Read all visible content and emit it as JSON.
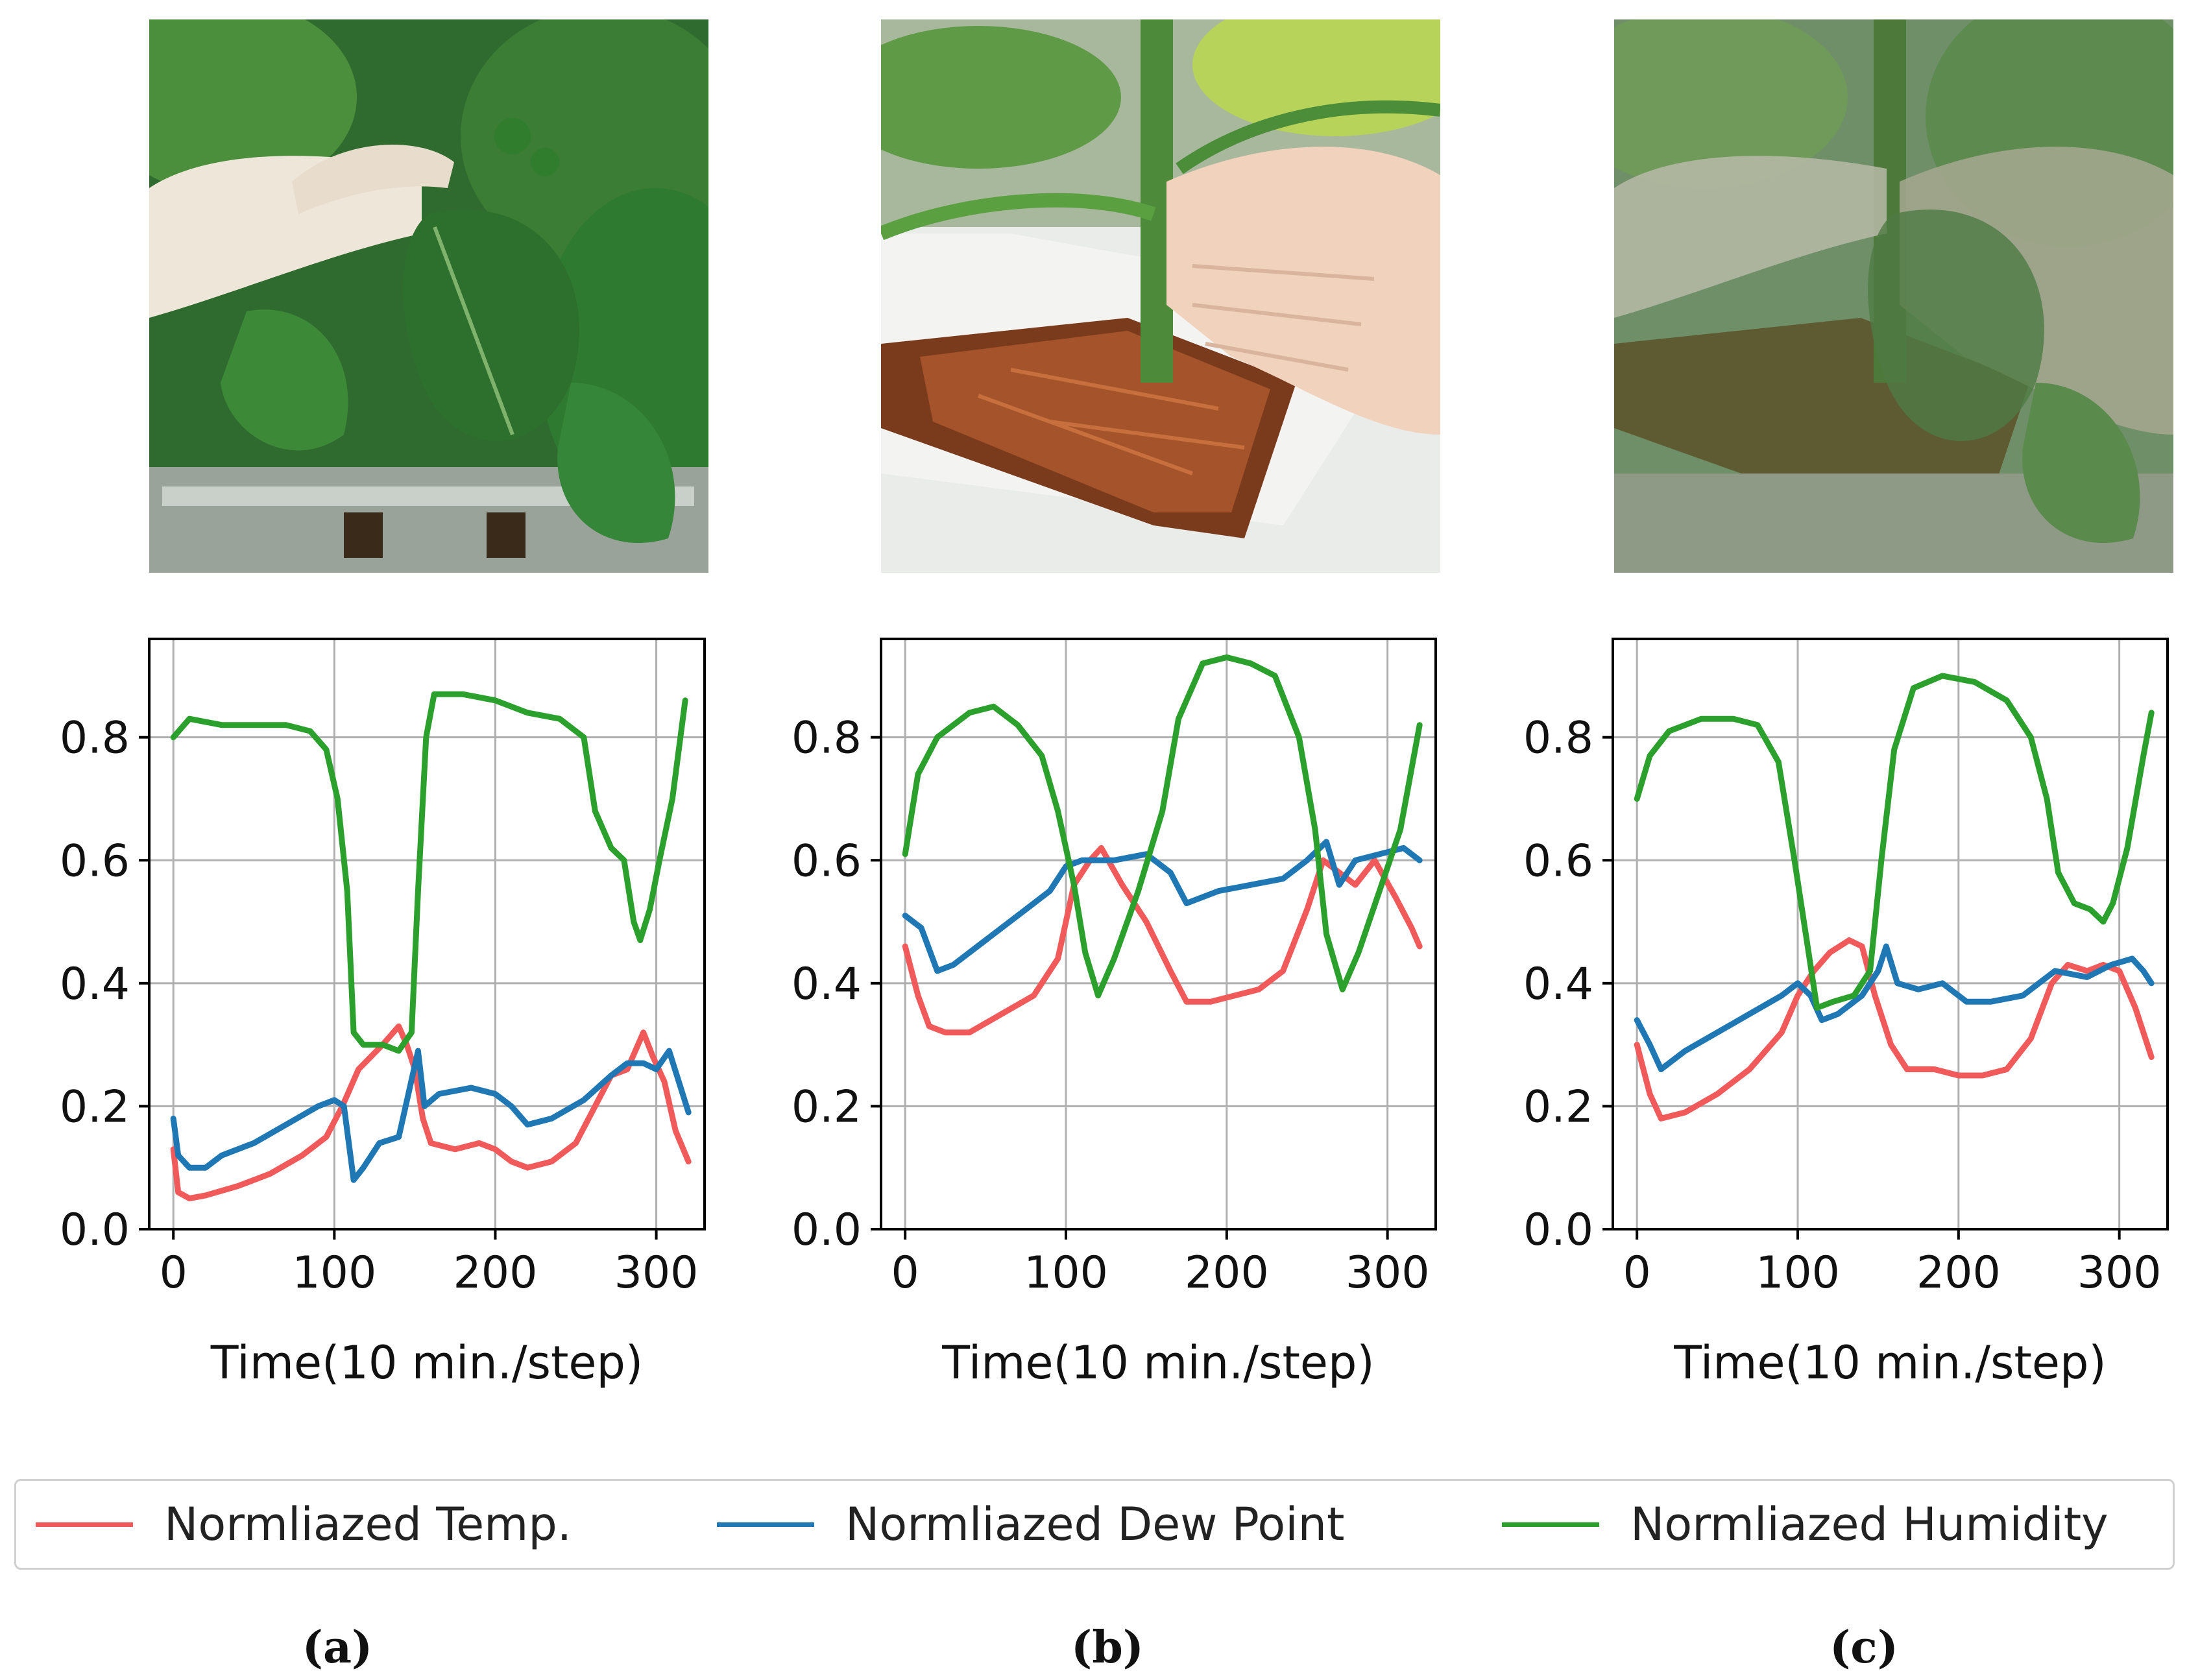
{
  "photos": [
    {
      "label": "leaf-photo"
    },
    {
      "label": "root-photo"
    },
    {
      "label": "overlay-photo"
    }
  ],
  "captions": [
    "(a)",
    "(b)",
    "(c)"
  ],
  "legend": [
    {
      "label": "Normliazed Temp.",
      "color": "#f15a5a"
    },
    {
      "label": "Normliazed Dew Point",
      "color": "#1f77b4"
    },
    {
      "label": "Normliazed Humidity",
      "color": "#2ca02c"
    }
  ],
  "chart_data": [
    {
      "type": "line",
      "panel": "(a)",
      "xlabel": "Time(10 min./step)",
      "ylabel": "",
      "xlim": [
        -15,
        330
      ],
      "ylim": [
        0.0,
        0.96
      ],
      "xticks": [
        0,
        100,
        200,
        300
      ],
      "yticks": [
        0.0,
        0.2,
        0.4,
        0.6,
        0.8
      ],
      "grid": true,
      "series": [
        {
          "name": "Normliazed Temp.",
          "color": "#f15a5a",
          "points": [
            [
              0,
              0.13
            ],
            [
              3,
              0.06
            ],
            [
              10,
              0.05
            ],
            [
              20,
              0.055
            ],
            [
              40,
              0.07
            ],
            [
              60,
              0.09
            ],
            [
              80,
              0.12
            ],
            [
              95,
              0.15
            ],
            [
              105,
              0.2
            ],
            [
              115,
              0.26
            ],
            [
              130,
              0.3
            ],
            [
              140,
              0.33
            ],
            [
              145,
              0.3
            ],
            [
              150,
              0.26
            ],
            [
              155,
              0.18
            ],
            [
              160,
              0.14
            ],
            [
              175,
              0.13
            ],
            [
              190,
              0.14
            ],
            [
              200,
              0.13
            ],
            [
              210,
              0.11
            ],
            [
              220,
              0.1
            ],
            [
              235,
              0.11
            ],
            [
              250,
              0.14
            ],
            [
              262,
              0.2
            ],
            [
              272,
              0.25
            ],
            [
              282,
              0.26
            ],
            [
              292,
              0.32
            ],
            [
              298,
              0.28
            ],
            [
              305,
              0.24
            ],
            [
              312,
              0.16
            ],
            [
              320,
              0.11
            ]
          ]
        },
        {
          "name": "Normliazed Dew Point",
          "color": "#1f77b4",
          "points": [
            [
              0,
              0.18
            ],
            [
              3,
              0.12
            ],
            [
              10,
              0.1
            ],
            [
              20,
              0.1
            ],
            [
              30,
              0.12
            ],
            [
              50,
              0.14
            ],
            [
              70,
              0.17
            ],
            [
              90,
              0.2
            ],
            [
              100,
              0.21
            ],
            [
              106,
              0.2
            ],
            [
              112,
              0.08
            ],
            [
              118,
              0.1
            ],
            [
              128,
              0.14
            ],
            [
              140,
              0.15
            ],
            [
              146,
              0.22
            ],
            [
              152,
              0.29
            ],
            [
              156,
              0.2
            ],
            [
              165,
              0.22
            ],
            [
              185,
              0.23
            ],
            [
              200,
              0.22
            ],
            [
              210,
              0.2
            ],
            [
              220,
              0.17
            ],
            [
              235,
              0.18
            ],
            [
              255,
              0.21
            ],
            [
              272,
              0.25
            ],
            [
              282,
              0.27
            ],
            [
              292,
              0.27
            ],
            [
              300,
              0.26
            ],
            [
              308,
              0.29
            ],
            [
              314,
              0.24
            ],
            [
              320,
              0.19
            ]
          ]
        },
        {
          "name": "Normliazed Humidity",
          "color": "#2ca02c",
          "points": [
            [
              0,
              0.8
            ],
            [
              10,
              0.83
            ],
            [
              30,
              0.82
            ],
            [
              50,
              0.82
            ],
            [
              70,
              0.82
            ],
            [
              85,
              0.81
            ],
            [
              95,
              0.78
            ],
            [
              102,
              0.7
            ],
            [
              108,
              0.55
            ],
            [
              112,
              0.32
            ],
            [
              118,
              0.3
            ],
            [
              130,
              0.3
            ],
            [
              140,
              0.29
            ],
            [
              148,
              0.32
            ],
            [
              152,
              0.55
            ],
            [
              157,
              0.8
            ],
            [
              162,
              0.87
            ],
            [
              180,
              0.87
            ],
            [
              200,
              0.86
            ],
            [
              220,
              0.84
            ],
            [
              240,
              0.83
            ],
            [
              255,
              0.8
            ],
            [
              262,
              0.68
            ],
            [
              272,
              0.62
            ],
            [
              280,
              0.6
            ],
            [
              286,
              0.5
            ],
            [
              290,
              0.47
            ],
            [
              296,
              0.52
            ],
            [
              302,
              0.6
            ],
            [
              310,
              0.7
            ],
            [
              318,
              0.86
            ]
          ]
        }
      ]
    },
    {
      "type": "line",
      "panel": "(b)",
      "xlabel": "Time(10 min./step)",
      "ylabel": "",
      "xlim": [
        -15,
        330
      ],
      "ylim": [
        0.0,
        0.96
      ],
      "xticks": [
        0,
        100,
        200,
        300
      ],
      "yticks": [
        0.0,
        0.2,
        0.4,
        0.6,
        0.8
      ],
      "grid": true,
      "series": [
        {
          "name": "Normliazed Temp.",
          "color": "#f15a5a",
          "points": [
            [
              0,
              0.46
            ],
            [
              8,
              0.38
            ],
            [
              15,
              0.33
            ],
            [
              25,
              0.32
            ],
            [
              40,
              0.32
            ],
            [
              60,
              0.35
            ],
            [
              80,
              0.38
            ],
            [
              95,
              0.44
            ],
            [
              105,
              0.56
            ],
            [
              115,
              0.6
            ],
            [
              122,
              0.62
            ],
            [
              135,
              0.56
            ],
            [
              150,
              0.5
            ],
            [
              165,
              0.42
            ],
            [
              175,
              0.37
            ],
            [
              190,
              0.37
            ],
            [
              205,
              0.38
            ],
            [
              220,
              0.39
            ],
            [
              235,
              0.42
            ],
            [
              250,
              0.52
            ],
            [
              260,
              0.6
            ],
            [
              270,
              0.58
            ],
            [
              280,
              0.56
            ],
            [
              292,
              0.6
            ],
            [
              305,
              0.54
            ],
            [
              315,
              0.49
            ],
            [
              320,
              0.46
            ]
          ]
        },
        {
          "name": "Normliazed Dew Point",
          "color": "#1f77b4",
          "points": [
            [
              0,
              0.51
            ],
            [
              10,
              0.49
            ],
            [
              20,
              0.42
            ],
            [
              30,
              0.43
            ],
            [
              50,
              0.47
            ],
            [
              70,
              0.51
            ],
            [
              90,
              0.55
            ],
            [
              100,
              0.59
            ],
            [
              110,
              0.6
            ],
            [
              130,
              0.6
            ],
            [
              150,
              0.61
            ],
            [
              165,
              0.58
            ],
            [
              175,
              0.53
            ],
            [
              195,
              0.55
            ],
            [
              215,
              0.56
            ],
            [
              235,
              0.57
            ],
            [
              250,
              0.6
            ],
            [
              262,
              0.63
            ],
            [
              270,
              0.56
            ],
            [
              280,
              0.6
            ],
            [
              295,
              0.61
            ],
            [
              310,
              0.62
            ],
            [
              320,
              0.6
            ]
          ]
        },
        {
          "name": "Normliazed Humidity",
          "color": "#2ca02c",
          "points": [
            [
              0,
              0.61
            ],
            [
              8,
              0.74
            ],
            [
              20,
              0.8
            ],
            [
              40,
              0.84
            ],
            [
              55,
              0.85
            ],
            [
              70,
              0.82
            ],
            [
              85,
              0.77
            ],
            [
              95,
              0.68
            ],
            [
              105,
              0.56
            ],
            [
              112,
              0.45
            ],
            [
              120,
              0.38
            ],
            [
              130,
              0.44
            ],
            [
              145,
              0.55
            ],
            [
              160,
              0.68
            ],
            [
              170,
              0.83
            ],
            [
              185,
              0.92
            ],
            [
              200,
              0.93
            ],
            [
              215,
              0.92
            ],
            [
              230,
              0.9
            ],
            [
              245,
              0.8
            ],
            [
              255,
              0.65
            ],
            [
              262,
              0.48
            ],
            [
              272,
              0.39
            ],
            [
              282,
              0.45
            ],
            [
              295,
              0.55
            ],
            [
              308,
              0.65
            ],
            [
              320,
              0.82
            ]
          ]
        }
      ]
    },
    {
      "type": "line",
      "panel": "(c)",
      "xlabel": "Time(10 min./step)",
      "ylabel": "",
      "xlim": [
        -15,
        330
      ],
      "ylim": [
        0.0,
        0.96
      ],
      "xticks": [
        0,
        100,
        200,
        300
      ],
      "yticks": [
        0.0,
        0.2,
        0.4,
        0.6,
        0.8
      ],
      "grid": true,
      "series": [
        {
          "name": "Normliazed Temp.",
          "color": "#f15a5a",
          "points": [
            [
              0,
              0.3
            ],
            [
              8,
              0.22
            ],
            [
              15,
              0.18
            ],
            [
              30,
              0.19
            ],
            [
              50,
              0.22
            ],
            [
              70,
              0.26
            ],
            [
              90,
              0.32
            ],
            [
              100,
              0.38
            ],
            [
              110,
              0.42
            ],
            [
              120,
              0.45
            ],
            [
              132,
              0.47
            ],
            [
              140,
              0.46
            ],
            [
              148,
              0.38
            ],
            [
              158,
              0.3
            ],
            [
              168,
              0.26
            ],
            [
              185,
              0.26
            ],
            [
              200,
              0.25
            ],
            [
              215,
              0.25
            ],
            [
              230,
              0.26
            ],
            [
              245,
              0.31
            ],
            [
              258,
              0.4
            ],
            [
              268,
              0.43
            ],
            [
              280,
              0.42
            ],
            [
              290,
              0.43
            ],
            [
              300,
              0.42
            ],
            [
              310,
              0.36
            ],
            [
              320,
              0.28
            ]
          ]
        },
        {
          "name": "Normliazed Dew Point",
          "color": "#1f77b4",
          "points": [
            [
              0,
              0.34
            ],
            [
              8,
              0.3
            ],
            [
              15,
              0.26
            ],
            [
              30,
              0.29
            ],
            [
              50,
              0.32
            ],
            [
              70,
              0.35
            ],
            [
              90,
              0.38
            ],
            [
              100,
              0.4
            ],
            [
              108,
              0.38
            ],
            [
              115,
              0.34
            ],
            [
              125,
              0.35
            ],
            [
              140,
              0.38
            ],
            [
              150,
              0.42
            ],
            [
              155,
              0.46
            ],
            [
              162,
              0.4
            ],
            [
              175,
              0.39
            ],
            [
              190,
              0.4
            ],
            [
              205,
              0.37
            ],
            [
              220,
              0.37
            ],
            [
              240,
              0.38
            ],
            [
              260,
              0.42
            ],
            [
              280,
              0.41
            ],
            [
              295,
              0.43
            ],
            [
              308,
              0.44
            ],
            [
              315,
              0.42
            ],
            [
              320,
              0.4
            ]
          ]
        },
        {
          "name": "Normliazed Humidity",
          "color": "#2ca02c",
          "points": [
            [
              0,
              0.7
            ],
            [
              8,
              0.77
            ],
            [
              20,
              0.81
            ],
            [
              40,
              0.83
            ],
            [
              60,
              0.83
            ],
            [
              75,
              0.82
            ],
            [
              88,
              0.76
            ],
            [
              98,
              0.6
            ],
            [
              105,
              0.48
            ],
            [
              112,
              0.36
            ],
            [
              122,
              0.37
            ],
            [
              135,
              0.38
            ],
            [
              145,
              0.42
            ],
            [
              152,
              0.6
            ],
            [
              160,
              0.78
            ],
            [
              172,
              0.88
            ],
            [
              190,
              0.9
            ],
            [
              210,
              0.89
            ],
            [
              230,
              0.86
            ],
            [
              245,
              0.8
            ],
            [
              255,
              0.7
            ],
            [
              262,
              0.58
            ],
            [
              272,
              0.53
            ],
            [
              282,
              0.52
            ],
            [
              290,
              0.5
            ],
            [
              296,
              0.53
            ],
            [
              305,
              0.62
            ],
            [
              315,
              0.77
            ],
            [
              320,
              0.84
            ]
          ]
        }
      ]
    }
  ]
}
